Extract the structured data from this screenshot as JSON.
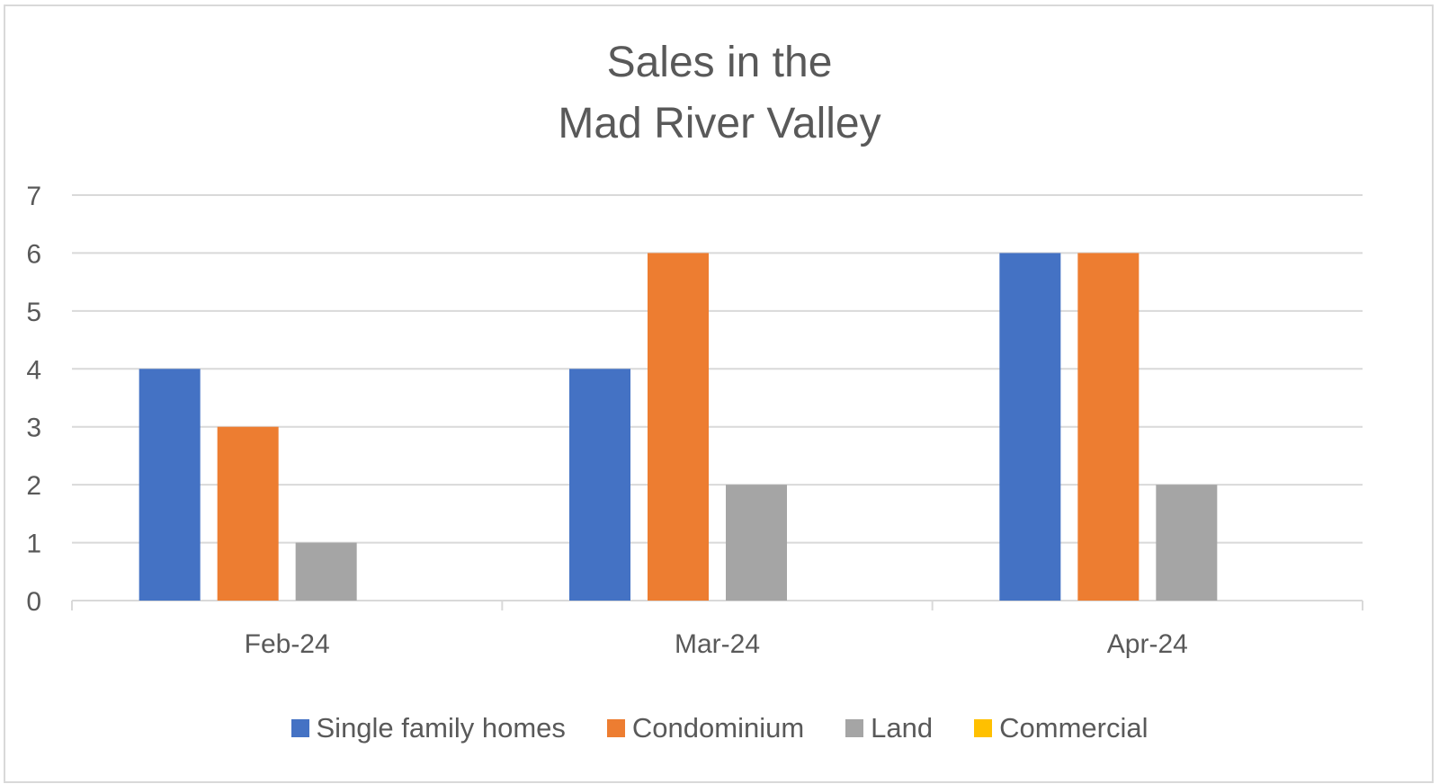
{
  "chart_data": {
    "type": "bar",
    "title_lines": [
      "Sales in the",
      "Mad River Valley"
    ],
    "categories": [
      "Feb-24",
      "Mar-24",
      "Apr-24"
    ],
    "series": [
      {
        "name": "Single family homes",
        "values": [
          4,
          4,
          6
        ],
        "color": "#4472c4"
      },
      {
        "name": "Condominium",
        "values": [
          3,
          6,
          6
        ],
        "color": "#ed7d31"
      },
      {
        "name": "Land",
        "values": [
          1,
          2,
          2
        ],
        "color": "#a5a5a5"
      },
      {
        "name": "Commercial",
        "values": [
          0,
          0,
          0
        ],
        "color": "#ffc000"
      }
    ],
    "y_ticks": [
      "0",
      "1",
      "2",
      "3",
      "4",
      "5",
      "6",
      "7"
    ],
    "ylim": [
      0,
      7
    ],
    "grid": true,
    "legend": "bottom"
  }
}
